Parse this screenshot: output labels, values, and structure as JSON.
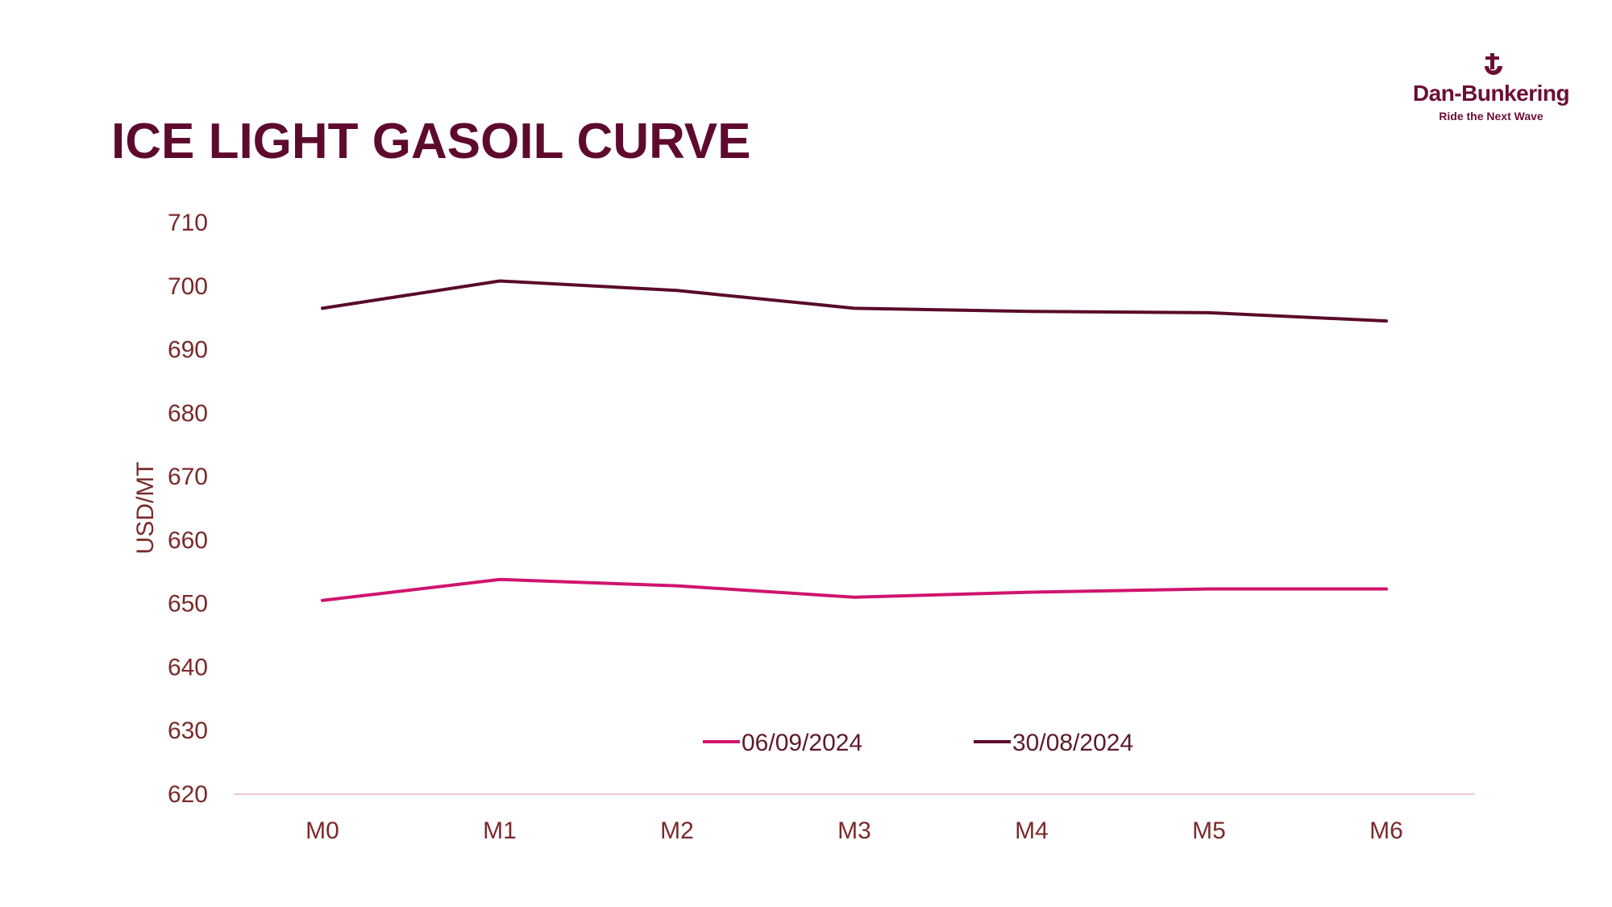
{
  "header": {
    "title": "ICE LIGHT GASOIL CURVE"
  },
  "brand": {
    "name": "Dan-Bunkering",
    "tagline": "Ride the Next Wave",
    "color": "#6b0f34"
  },
  "chart_data": {
    "type": "line",
    "categories": [
      "M0",
      "M1",
      "M2",
      "M3",
      "M4",
      "M5",
      "M6"
    ],
    "ylabel": "USD/MT",
    "ylim": [
      620,
      710
    ],
    "yticks": [
      620,
      630,
      640,
      650,
      660,
      670,
      680,
      690,
      700,
      710
    ],
    "grid": false,
    "legend_position": "bottom-center",
    "series": [
      {
        "name": "06/09/2024",
        "color": "#d0146f",
        "values": [
          650.5,
          653.8,
          652.8,
          651.0,
          651.8,
          652.3,
          652.3
        ]
      },
      {
        "name": "30/08/2024",
        "color": "#5a0a2a",
        "values": [
          696.5,
          700.8,
          699.3,
          696.5,
          696.0,
          695.8,
          694.5
        ]
      }
    ]
  }
}
